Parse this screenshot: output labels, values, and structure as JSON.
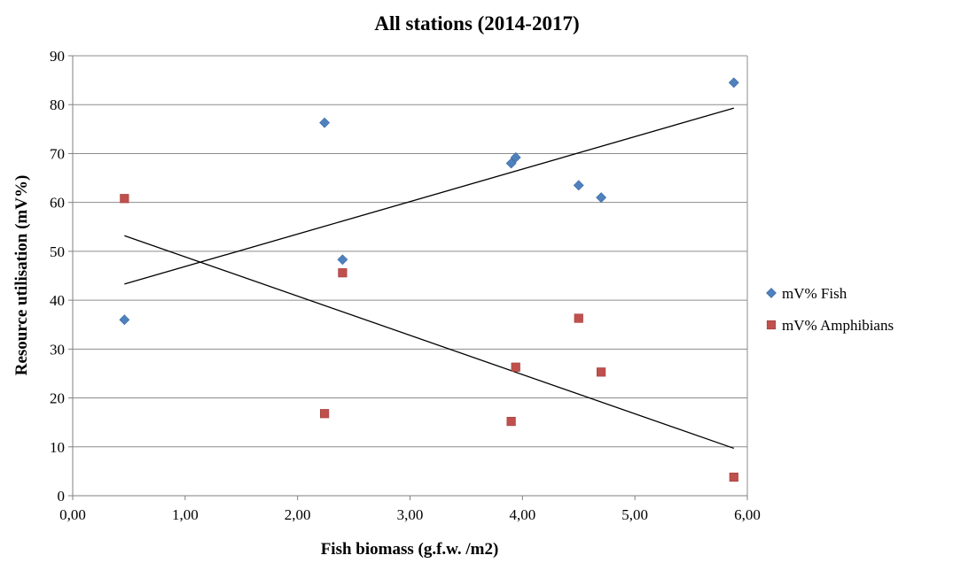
{
  "chart_data": {
    "type": "scatter",
    "title": "All stations  (2014-2017)",
    "xlabel": "Fish biomass (g.f.w. /m2)",
    "ylabel": "Resource utilisation (mV%)",
    "xlim": [
      0,
      6
    ],
    "ylim": [
      0,
      90
    ],
    "x_ticks": [
      "0,00",
      "1,00",
      "2,00",
      "3,00",
      "4,00",
      "5,00",
      "6,00"
    ],
    "y_ticks": [
      "0",
      "10",
      "20",
      "30",
      "40",
      "50",
      "60",
      "70",
      "80",
      "90"
    ],
    "grid": "horizontal",
    "legend_position": "right",
    "series": [
      {
        "name": "mV% Fish",
        "marker": "diamond",
        "color": "#4f81bd",
        "points": [
          [
            0.46,
            36
          ],
          [
            2.24,
            76.3
          ],
          [
            2.4,
            48.3
          ],
          [
            3.9,
            68.0
          ],
          [
            3.94,
            69.2
          ],
          [
            4.5,
            63.5
          ],
          [
            4.7,
            61.0
          ],
          [
            5.88,
            84.5
          ]
        ],
        "trendline": [
          [
            0.46,
            43.3
          ],
          [
            5.88,
            79.3
          ]
        ]
      },
      {
        "name": "mV% Amphibians",
        "marker": "square",
        "color": "#c0504d",
        "points": [
          [
            0.46,
            60.8
          ],
          [
            2.24,
            16.8
          ],
          [
            2.4,
            45.6
          ],
          [
            3.9,
            15.2
          ],
          [
            3.94,
            26.3
          ],
          [
            4.5,
            36.3
          ],
          [
            4.7,
            25.3
          ],
          [
            5.88,
            3.8
          ]
        ],
        "trendline": [
          [
            0.46,
            53.2
          ],
          [
            5.88,
            9.7
          ]
        ]
      }
    ]
  }
}
